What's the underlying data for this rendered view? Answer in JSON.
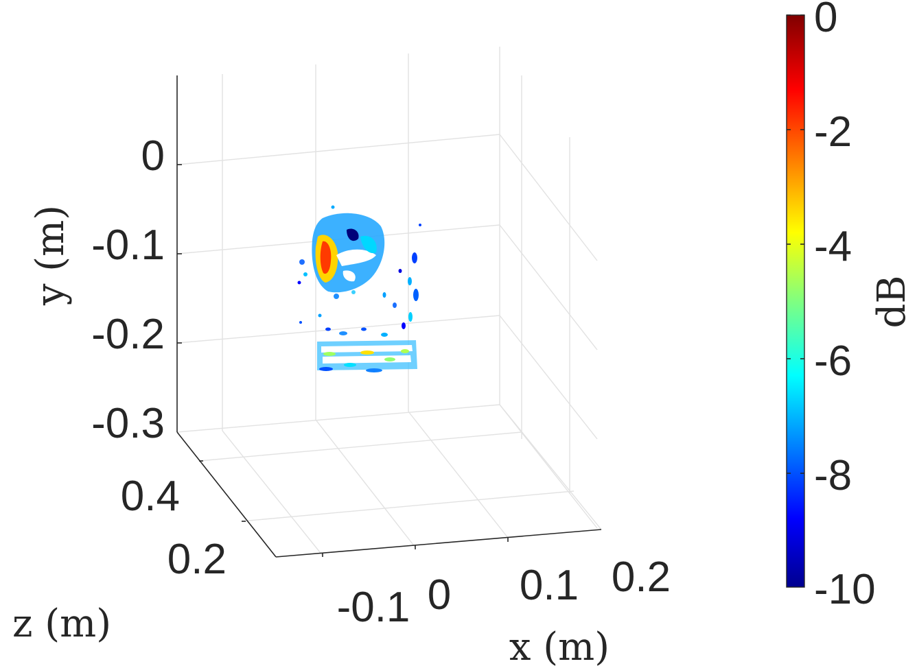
{
  "chart_data": {
    "type": "3d-volume-scatter",
    "title": "",
    "xlabel": "x (m)",
    "ylabel": "y (m)",
    "zlabel": "z (m)",
    "x_ticks": [
      "-0.1",
      "0",
      "0.1",
      "0.2"
    ],
    "y_ticks": [
      "0",
      "-0.1",
      "-0.2",
      "-0.3"
    ],
    "z_ticks": [
      "0.4",
      "0.2"
    ],
    "colorbar": {
      "label": "dB",
      "ticks": [
        "0",
        "-2",
        "-4",
        "-6",
        "-8",
        "-10"
      ],
      "range": [
        -10,
        0
      ],
      "colormap": [
        "#00008f",
        "#0000ff",
        "#0080ff",
        "#00ffff",
        "#80ff80",
        "#ffff00",
        "#ff8000",
        "#ff0000",
        "#800000"
      ]
    },
    "grid": true
  }
}
